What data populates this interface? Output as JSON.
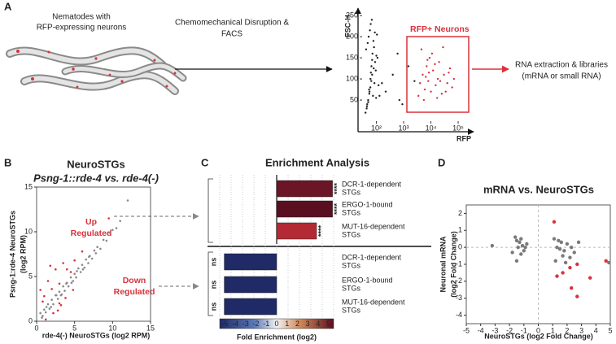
{
  "panel_labels": [
    "A",
    "B",
    "C",
    "D"
  ],
  "diagram": {
    "worm_caption": [
      "Nematodes with",
      "RFP-expressing neurons"
    ],
    "step_caption": [
      "Chemomechanical Disruption &",
      "FACS"
    ],
    "gate_label": "RFP+ Neurons",
    "output_caption": [
      "RNA extraction & libraries",
      "(mRNA or small RNA)"
    ],
    "up_label": [
      "Up",
      "Regulated"
    ],
    "down_label": [
      "Down",
      "Regulated"
    ]
  },
  "chart_data": [
    {
      "type": "scatter",
      "xlabel": "RFP",
      "ylabel": "FSC-H",
      "xscale": "log",
      "xlim": [
        30,
        280000
      ],
      "xticks": [
        {
          "value": 100,
          "label": "10²"
        },
        {
          "value": 1000,
          "label": "10³"
        },
        {
          "value": 10000,
          "label": "10⁴"
        },
        {
          "value": 100000,
          "label": "10⁵"
        }
      ],
      "ylim": [
        0,
        258
      ],
      "yticks": [
        50,
        100,
        150,
        200,
        250
      ],
      "series": [
        {
          "color": "#222222",
          "x": [
            40,
            45,
            50,
            55,
            60,
            65,
            70,
            80,
            90,
            100,
            42,
            48,
            52,
            58,
            62,
            68,
            75,
            85,
            95,
            110,
            44,
            50,
            56,
            61,
            66,
            72,
            78,
            88,
            98,
            120,
            46,
            54,
            63,
            70,
            82,
            105,
            130,
            160,
            220,
            400,
            700,
            1500,
            2500,
            600,
            900
          ],
          "values": [
            20,
            35,
            50,
            65,
            80,
            95,
            110,
            125,
            140,
            155,
            170,
            185,
            200,
            215,
            230,
            240,
            60,
            90,
            120,
            150,
            30,
            45,
            70,
            100,
            130,
            160,
            190,
            210,
            55,
            85,
            40,
            75,
            115,
            145,
            175,
            205,
            60,
            90,
            70,
            110,
            50,
            130,
            95,
            160,
            40
          ]
        },
        {
          "color": "#d8323c",
          "x": [
            3500,
            4000,
            5000,
            6000,
            7000,
            8000,
            9000,
            10000,
            12000,
            15000,
            18000,
            20000,
            25000,
            30000,
            40000,
            50000,
            60000,
            4500,
            5500,
            6500,
            7500,
            8500,
            11000,
            14000,
            17000,
            22000,
            28000,
            35000,
            45000,
            70000
          ],
          "values": [
            60,
            90,
            110,
            75,
            130,
            95,
            150,
            70,
            120,
            85,
            100,
            140,
            65,
            110,
            90,
            125,
            80,
            170,
            50,
            105,
            145,
            115,
            160,
            135,
            55,
            95,
            175,
            70,
            115,
            100
          ]
        }
      ]
    },
    {
      "type": "scatter",
      "title": "NeuroSTGs",
      "subtitle": "Psng-1::rde-4 vs. rde-4(-)",
      "xlabel": "rde-4(-) NeuroSTGs (log2 RPM)",
      "ylabel": [
        "Psng-1:rde-4 NeuroSTGs",
        "(log2 RPM)"
      ],
      "xlim": [
        0,
        15
      ],
      "xticks": [
        0,
        5,
        10,
        15
      ],
      "ylim": [
        0,
        15
      ],
      "yticks": [
        0,
        5,
        10,
        15
      ],
      "series": [
        {
          "color": "#8a8a8a",
          "x": [
            0.5,
            0.8,
            1,
            1.2,
            1.5,
            1.7,
            2,
            2.2,
            2.5,
            2.8,
            3,
            3.2,
            3.5,
            3.7,
            4,
            4.2,
            4.5,
            4.8,
            5,
            5.2,
            5.5,
            5.8,
            6,
            6.3,
            6.5,
            6.8,
            7,
            7.3,
            7.6,
            8,
            8.4,
            8.8,
            9.2,
            9.6,
            10,
            10.5,
            11,
            0.7,
            1.3,
            1.9,
            2.6,
            3.3,
            3.9,
            4.6,
            5.3,
            6.1,
            6.9,
            7.8,
            12
          ],
          "values": [
            0.9,
            0.6,
            1.3,
            1.0,
            1.9,
            1.4,
            2.4,
            1.9,
            2.9,
            2.5,
            3.3,
            2.9,
            3.9,
            3.4,
            4.3,
            3.9,
            4.9,
            4.5,
            5.3,
            4.9,
            5.9,
            5.5,
            6.3,
            6.0,
            6.9,
            6.5,
            7.3,
            7.0,
            7.9,
            8.3,
            8.1,
            9.1,
            9.0,
            9.9,
            10.2,
            10.4,
            11.2,
            0.4,
            1.6,
            1.6,
            2.9,
            3.0,
            4.2,
            4.3,
            5.6,
            5.8,
            7.2,
            7.6,
            13.5
          ]
        },
        {
          "color": "#d8323c",
          "x": [
            0.5,
            1,
            1.5,
            2,
            2.5,
            3,
            3.5,
            4,
            4.5,
            5,
            1.2,
            2.2,
            3.2,
            0.8,
            2.8,
            3.8,
            4.8,
            6,
            1.8,
            3,
            9.5
          ],
          "values": [
            3.5,
            2.8,
            4.5,
            3.6,
            5.8,
            4.2,
            6.5,
            5.8,
            5.5,
            6.8,
            0.2,
            0.9,
            1.8,
            2.2,
            1.2,
            2.6,
            3.5,
            7.8,
            6.2,
            2.0,
            11.5
          ]
        }
      ]
    },
    {
      "type": "hbar",
      "title": "Enrichment Analysis",
      "xlabel": "Fold Enrichment (log2)",
      "categories": [
        [
          "DCR-1-dependent",
          "STGs"
        ],
        [
          "ERGO-1-bound",
          "STGs"
        ],
        [
          "MUT-16-dependent",
          "STGs"
        ],
        [
          "DCR-1-dependent",
          "STGs"
        ],
        [
          "ERGO-1-bound",
          "STGs"
        ],
        [
          "MUT-16-dependent",
          "STGs"
        ]
      ],
      "values": [
        4.9,
        4.9,
        3.5,
        -4.6,
        -4.6,
        -4.6
      ],
      "colors": [
        "#6b1526",
        "#5a0f20",
        "#b32a35",
        "#1f2a66",
        "#1f2a66",
        "#1f2a66"
      ],
      "significance": [
        "****",
        "****",
        "****",
        "ns",
        "ns",
        "ns"
      ],
      "xlim": [
        -5,
        5
      ],
      "xticks": [
        -5,
        -4,
        -3,
        -2,
        -1,
        0,
        1,
        2,
        3,
        4,
        5
      ],
      "grid": true
    },
    {
      "type": "scatter",
      "title": "mRNA vs. NeuroSTGs",
      "xlabel": "NeuroSTGs (log2 Fold Change)",
      "ylabel": [
        "Neuronal mRNA",
        "(log2 Fold Change)"
      ],
      "xlim": [
        -5,
        5
      ],
      "xticks": [
        -5,
        -4,
        -3,
        -2,
        -1,
        0,
        1,
        2,
        3,
        4,
        5
      ],
      "ylim": [
        -4.5,
        2.5
      ],
      "yticks": [
        -4,
        -3,
        -2,
        -1,
        0,
        1,
        2
      ],
      "zero_lines": true,
      "series": [
        {
          "color": "#7a7a7a",
          "x": [
            -3.2,
            -1.6,
            -1.5,
            -1.3,
            -1.2,
            -1.1,
            -0.9,
            -1.4,
            -1.0,
            -1.2,
            -1.5,
            -1.8,
            -0.8,
            1.1,
            1.4,
            1.6,
            1.3,
            1.5,
            1.8,
            2.0,
            1.7,
            2.2,
            2.5,
            1.2,
            1.9,
            2.3,
            2.8,
            4.9
          ],
          "values": [
            0.1,
            0.6,
            0.4,
            0.3,
            0.5,
            0.1,
            0,
            0,
            -0.2,
            -0.4,
            -0.8,
            -0.3,
            0.2,
            0.5,
            0.4,
            0.3,
            0,
            -0.1,
            -0.2,
            0.2,
            -0.5,
            -0.6,
            -0.3,
            -0.8,
            -0.9,
            0,
            0.3,
            -0.9
          ]
        },
        {
          "color": "#d8323c",
          "x": [
            1.1,
            1.3,
            1.7,
            2.2,
            2.7,
            2.3,
            2.7,
            3.6,
            4.7
          ],
          "values": [
            1.5,
            -1.7,
            -1.5,
            -1.2,
            -1.0,
            -2.4,
            -2.9,
            -1.8,
            -0.8
          ]
        }
      ]
    }
  ]
}
